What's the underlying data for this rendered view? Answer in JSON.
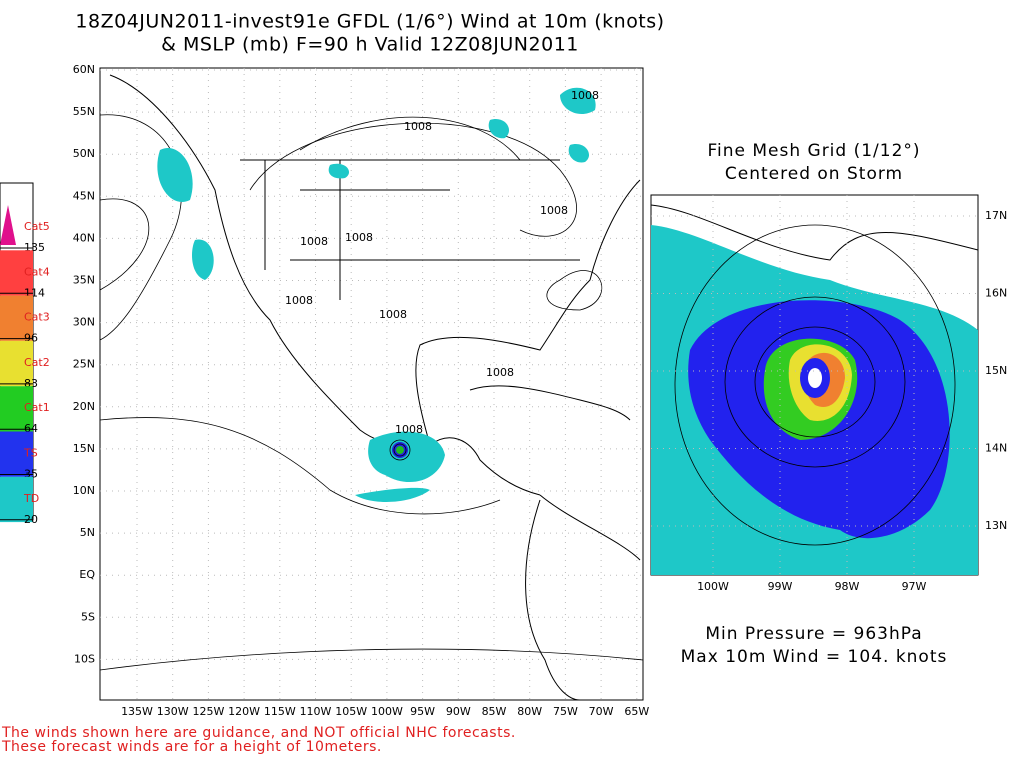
{
  "title": {
    "line1": "18Z04JUN2011-invest91e GFDL (1/6°) Wind at 10m (knots)",
    "line2": "& MSLP (mb) F=90 h Valid 12Z08JUN2011"
  },
  "main_map": {
    "lat_labels": [
      "60N",
      "55N",
      "50N",
      "45N",
      "40N",
      "35N",
      "30N",
      "25N",
      "20N",
      "15N",
      "10N",
      "5N",
      "EQ",
      "5S",
      "10S"
    ],
    "lon_labels": [
      "135W",
      "130W",
      "125W",
      "120W",
      "115W",
      "110W",
      "105W",
      "100W",
      "95W",
      "90W",
      "85W",
      "80W",
      "75W",
      "70W",
      "65W"
    ],
    "isobar_labels": [
      "1008",
      "1008",
      "1008",
      "1008",
      "1008",
      "1008",
      "1008",
      "1008",
      "1008"
    ]
  },
  "legend": {
    "items": [
      {
        "category": "Cat5",
        "threshold": "135"
      },
      {
        "category": "Cat4",
        "threshold": "114"
      },
      {
        "category": "Cat3",
        "threshold": "96"
      },
      {
        "category": "Cat2",
        "threshold": "83"
      },
      {
        "category": "Cat1",
        "threshold": "64"
      },
      {
        "category": "TS",
        "threshold": "35"
      },
      {
        "category": "TD",
        "threshold": "20"
      }
    ]
  },
  "inset": {
    "title": [
      "Fine Mesh Grid (1/12°)",
      "Centered on Storm"
    ],
    "lat_labels": [
      "17N",
      "16N",
      "15N",
      "14N",
      "13N"
    ],
    "lon_labels": [
      "100W",
      "99W",
      "98W",
      "97W"
    ]
  },
  "stats": {
    "min_pressure": "Min Pressure = 963hPa",
    "max_wind": "Max 10m Wind = 104. knots"
  },
  "disclaimer": [
    "The winds shown here are guidance, and NOT official NHC forecasts.",
    "These forecast winds are for a height of 10meters."
  ]
}
